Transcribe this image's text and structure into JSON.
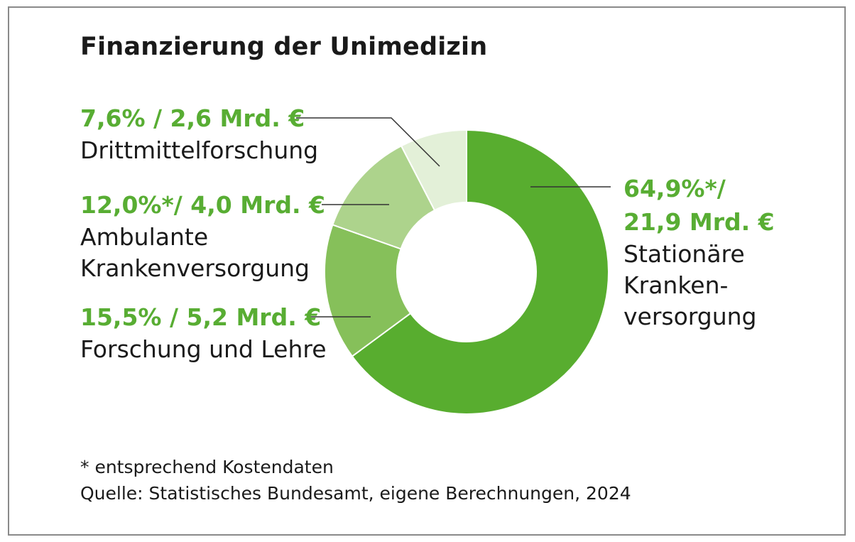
{
  "title": "Finanzierung der Unimedizin",
  "chart_data": {
    "type": "pie",
    "variant": "donut",
    "title": "Finanzierung der Unimedizin",
    "slices": [
      {
        "value_text": "64,9%*/",
        "value_text_2": "21,9 Mrd. €",
        "label_lines": [
          "Stationäre",
          "Kranken-",
          "versorgung"
        ],
        "label": "Stationäre Krankenversorgung",
        "percent": 64.9,
        "amount_bn_eur": 21.9,
        "color": "#58ad2f"
      },
      {
        "value_text": "15,5% / 5,2 Mrd. €",
        "label_lines": [
          "Forschung und Lehre"
        ],
        "label": "Forschung und Lehre",
        "percent": 15.5,
        "amount_bn_eur": 5.2,
        "color": "#86c05a"
      },
      {
        "value_text": "12,0%*/ 4,0 Mrd. €",
        "label_lines": [
          "Ambulante",
          "Krankenversorgung"
        ],
        "label": "Ambulante Krankenversorgung",
        "percent": 12.0,
        "amount_bn_eur": 4.0,
        "color": "#add38c"
      },
      {
        "value_text": "7,6% / 2,6 Mrd. €",
        "label_lines": [
          "Drittmittelforschung"
        ],
        "label": "Drittmittelforschung",
        "percent": 7.6,
        "amount_bn_eur": 2.6,
        "color": "#e3f0d8"
      }
    ]
  },
  "footnote": "* entsprechend Kostendaten",
  "source": "Quelle: Statistisches Bundesamt, eigene Berechnungen, 2024",
  "colors": {
    "accent_text": "#58ad33",
    "leader_line": "#333333",
    "frame": "#8a8a8a"
  }
}
